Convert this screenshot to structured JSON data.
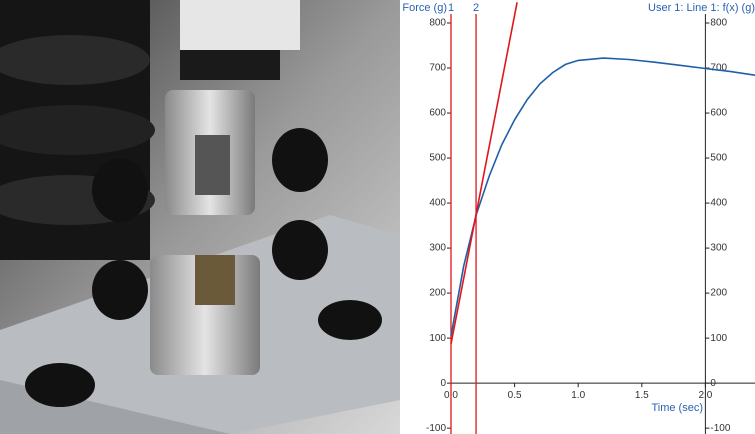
{
  "chart_data": {
    "type": "line",
    "ylabel": "Force (g)",
    "y2label": "User 1: Line 1: f(x) (g)",
    "xlabel": "Time (sec)",
    "xlim": [
      0,
      2.39
    ],
    "ylim": [
      -113,
      820
    ],
    "y2lim": [
      -113,
      820
    ],
    "xticks": [
      {
        "value": 0,
        "label": "0.0"
      },
      0.5,
      {
        "value": 1,
        "label": "1.0"
      },
      1.5,
      {
        "value": 2,
        "label": "2.0"
      }
    ],
    "yticks": [
      -100,
      0,
      100,
      200,
      300,
      400,
      500,
      600,
      700,
      800
    ],
    "y2ticks": [
      -100,
      0,
      100,
      200,
      300,
      400,
      500,
      600,
      700,
      800
    ],
    "cursors": [
      {
        "label": "1",
        "x": 0,
        "color": "#e0161b"
      },
      {
        "label": "2",
        "x": 0.197,
        "color": "#e0161b"
      }
    ],
    "series": [
      {
        "color": "#1f5fa8",
        "x": [
          0,
          0.1,
          0.2,
          0.3,
          0.4,
          0.5,
          0.6,
          0.7,
          0.8,
          0.9,
          1.0,
          1.2,
          1.4,
          1.6,
          1.8,
          2.0,
          2.2,
          2.39
        ],
        "values": [
          105,
          260,
          375,
          460,
          530,
          585,
          630,
          665,
          690,
          708,
          717,
          722,
          719,
          713,
          706,
          699,
          692,
          684
        ]
      },
      {
        "color": "#e0161b",
        "x": [
          0,
          0.52
        ],
        "values": [
          87,
          846
        ]
      }
    ]
  }
}
